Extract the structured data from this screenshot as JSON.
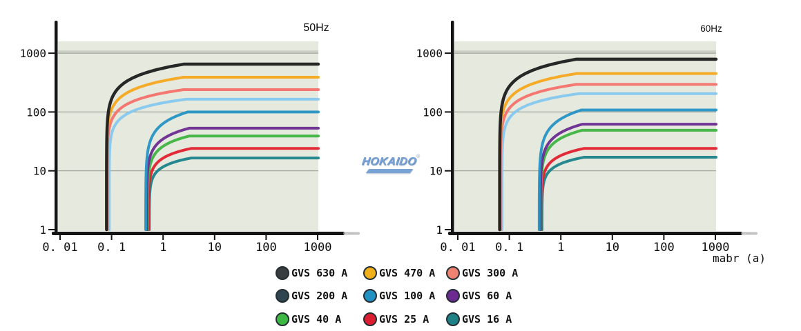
{
  "watermark": {
    "text": "HOKAIDO",
    "reg": "®",
    "color": "#7aa3d5"
  },
  "x_axis_unit_label": "mabr (a)",
  "charts": [
    {
      "title": "50Hz",
      "y_tick_labels": [
        "1000",
        "100",
        "10",
        "1"
      ],
      "x_tick_labels": [
        "0. 01",
        "0. 1",
        "1",
        "10",
        "100",
        "1000"
      ]
    },
    {
      "title": "60Hz",
      "y_tick_labels": [
        "1000",
        "100",
        "10",
        "1"
      ],
      "x_tick_labels": [
        "0. 01",
        "0. 1",
        "1",
        "10",
        "100",
        "1000"
      ]
    }
  ],
  "chart_data": [
    {
      "type": "line",
      "title": "50Hz",
      "x_scale": "log",
      "y_scale": "log",
      "xlim": [
        0.01,
        1000
      ],
      "ylim": [
        1,
        1000
      ],
      "x_ticks": [
        0.01,
        0.1,
        1,
        10,
        100,
        1000
      ],
      "y_ticks": [
        1,
        10,
        100,
        1000
      ],
      "grid": "horizontal",
      "plot_bg": "#e6e9dd",
      "series": [
        {
          "name": "GVS 630 A",
          "color": "#1c1c1c",
          "start_x": 0.08,
          "knee_x": 2.5,
          "plateau_y": 650
        },
        {
          "name": "GVS 470 A",
          "color": "#f5a81e",
          "start_x": 0.08,
          "knee_x": 2.5,
          "plateau_y": 390
        },
        {
          "name": "GVS 300 A",
          "color": "#f4716a",
          "start_x": 0.082,
          "knee_x": 2.5,
          "plateau_y": 240
        },
        {
          "name": "GVS 200 A",
          "color": "#85c8ef",
          "start_x": 0.09,
          "knee_x": 2.8,
          "plateau_y": 165
        },
        {
          "name": "GVS 100 A",
          "color": "#2693c5",
          "start_x": 0.46,
          "knee_x": 3.0,
          "plateau_y": 100
        },
        {
          "name": "GVS 60 A",
          "color": "#6a2b91",
          "start_x": 0.48,
          "knee_x": 3.2,
          "plateau_y": 53
        },
        {
          "name": "GVS 40 A",
          "color": "#3eb441",
          "start_x": 0.5,
          "knee_x": 3.2,
          "plateau_y": 39
        },
        {
          "name": "GVS 25 A",
          "color": "#e2202e",
          "start_x": 0.52,
          "knee_x": 3.5,
          "plateau_y": 24
        },
        {
          "name": "GVS 16 A",
          "color": "#1b838a",
          "start_x": 0.54,
          "knee_x": 3.5,
          "plateau_y": 16.5
        }
      ]
    },
    {
      "type": "line",
      "title": "60Hz",
      "xlabel": "mabr (a)",
      "x_scale": "log",
      "y_scale": "log",
      "xlim": [
        0.01,
        1000
      ],
      "ylim": [
        1,
        1000
      ],
      "x_ticks": [
        0.01,
        0.1,
        1,
        10,
        100,
        1000
      ],
      "y_ticks": [
        1,
        10,
        100,
        1000
      ],
      "grid": "horizontal",
      "plot_bg": "#e6e9dd",
      "series": [
        {
          "name": "GVS 630 A",
          "color": "#1c1c1c",
          "start_x": 0.065,
          "knee_x": 2.0,
          "plateau_y": 790
        },
        {
          "name": "GVS 470 A",
          "color": "#f5a81e",
          "start_x": 0.065,
          "knee_x": 2.0,
          "plateau_y": 450
        },
        {
          "name": "GVS 300 A",
          "color": "#f4716a",
          "start_x": 0.067,
          "knee_x": 2.0,
          "plateau_y": 295
        },
        {
          "name": "GVS 200 A",
          "color": "#85c8ef",
          "start_x": 0.072,
          "knee_x": 2.2,
          "plateau_y": 205
        },
        {
          "name": "GVS 100 A",
          "color": "#2693c5",
          "start_x": 0.38,
          "knee_x": 2.5,
          "plateau_y": 108
        },
        {
          "name": "GVS 60 A",
          "color": "#6a2b91",
          "start_x": 0.4,
          "knee_x": 2.6,
          "plateau_y": 62
        },
        {
          "name": "GVS 40 A",
          "color": "#3eb441",
          "start_x": 0.41,
          "knee_x": 2.6,
          "plateau_y": 49
        },
        {
          "name": "GVS 25 A",
          "color": "#e2202e",
          "start_x": 0.42,
          "knee_x": 2.8,
          "plateau_y": 24
        },
        {
          "name": "GVS 16 A",
          "color": "#1b838a",
          "start_x": 0.43,
          "knee_x": 2.8,
          "plateau_y": 17
        }
      ]
    }
  ],
  "legend": {
    "items": [
      {
        "label": "GVS 630 A",
        "color": "#383d40"
      },
      {
        "label": "GVS 470 A",
        "color": "#f0b01c"
      },
      {
        "label": "GVS 300 A",
        "color": "#f08272"
      },
      {
        "label": "GVS 200 A",
        "color": "#2e4450"
      },
      {
        "label": "GVS 100 A",
        "color": "#2191c4"
      },
      {
        "label": "GVS 60 A",
        "color": "#6c2b90"
      },
      {
        "label": "GVS 40 A",
        "color": "#3db843"
      },
      {
        "label": "GVS 25 A",
        "color": "#dc1e32"
      },
      {
        "label": "GVS 16 A",
        "color": "#1d8186"
      }
    ]
  },
  "style_colors": {
    "plot_background": "#e6e9dd",
    "gridline": "#99a199",
    "gridline_band": "#ccd1c5",
    "axis": "#141414"
  }
}
